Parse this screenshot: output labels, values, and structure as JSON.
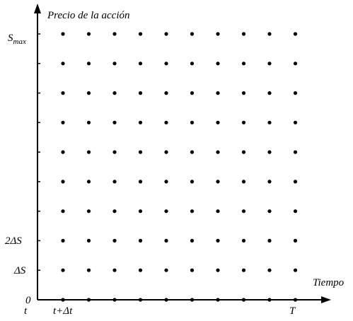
{
  "diagram": {
    "y_axis_label": "Precio de la acción",
    "x_axis_label": "Tiempo",
    "y_labels": {
      "s_max": {
        "main": "S",
        "sub": "max"
      },
      "two_delta_s": "2ΔS",
      "delta_s": "ΔS",
      "zero": "0"
    },
    "x_labels": {
      "t": "t",
      "t_plus_dt": "t+Δt",
      "T": "T"
    },
    "grid": {
      "time_steps": 10,
      "price_levels": 9
    }
  }
}
